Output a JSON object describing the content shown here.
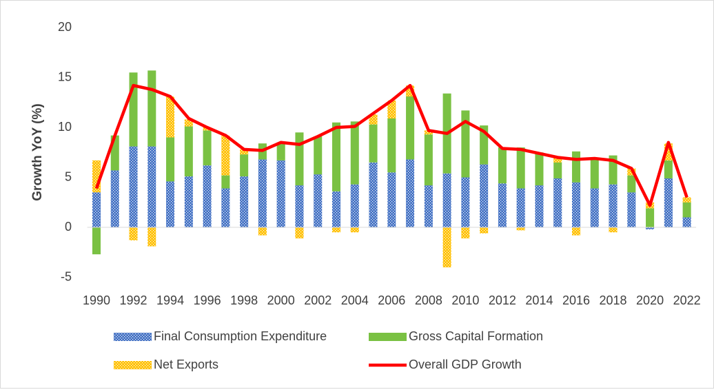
{
  "chart_data": {
    "type": "bar",
    "stacked": true,
    "y_label": "Growth YoY (%)",
    "categories": [
      "1990",
      null,
      "1992",
      null,
      "1994",
      null,
      "1996",
      null,
      "1998",
      null,
      "2000",
      null,
      "2002",
      null,
      "2004",
      null,
      "2006",
      null,
      "2008",
      null,
      "2010",
      null,
      "2012",
      null,
      "2014",
      null,
      "2016",
      null,
      "2018",
      null,
      "2020",
      null,
      "2022"
    ],
    "series": [
      {
        "name": "Final Consumption Expenditure",
        "type": "bar",
        "color": "#4472c4",
        "pattern": "dots",
        "values": [
          3.5,
          5.7,
          8.1,
          8.1,
          4.6,
          5.1,
          6.2,
          3.9,
          5.1,
          6.8,
          6.7,
          4.2,
          5.3,
          3.6,
          4.3,
          6.5,
          5.5,
          6.8,
          4.2,
          5.4,
          5.0,
          6.3,
          4.4,
          3.9,
          4.2,
          4.9,
          4.5,
          3.9,
          4.3,
          3.5,
          -0.2,
          4.9,
          1.0
        ]
      },
      {
        "name": "Gross Capital Formation",
        "type": "bar",
        "color": "#7ac143",
        "values": [
          -2.7,
          3.5,
          7.4,
          7.6,
          4.4,
          5.0,
          3.5,
          1.3,
          2.2,
          1.6,
          1.8,
          5.3,
          3.8,
          6.9,
          6.3,
          3.8,
          5.4,
          6.3,
          5.1,
          8.0,
          6.7,
          3.9,
          3.6,
          4.1,
          3.3,
          1.6,
          3.1,
          2.9,
          2.9,
          1.7,
          1.9,
          1.8,
          1.5
        ]
      },
      {
        "name": "Net Exports",
        "type": "bar",
        "color": "#ffc000",
        "pattern": "dots",
        "values": [
          3.2,
          0.0,
          -1.3,
          -1.9,
          4.1,
          0.7,
          0.3,
          4.0,
          0.5,
          -0.8,
          0.0,
          -1.1,
          0.0,
          -0.5,
          -0.5,
          1.0,
          1.8,
          1.1,
          0.4,
          -4.0,
          -1.1,
          -0.6,
          0.0,
          -0.3,
          0.0,
          0.6,
          -0.8,
          0.1,
          -0.5,
          0.7,
          0.6,
          1.7,
          0.5
        ]
      },
      {
        "name": "Overall GDP Growth",
        "type": "line",
        "color": "#ff0000",
        "values": [
          3.9,
          9.2,
          14.2,
          13.8,
          13.1,
          10.9,
          10.0,
          9.2,
          7.8,
          7.7,
          8.5,
          8.3,
          9.1,
          10.0,
          10.1,
          11.4,
          12.7,
          14.2,
          9.7,
          9.4,
          10.6,
          9.6,
          7.9,
          7.8,
          7.4,
          7.0,
          6.8,
          6.9,
          6.7,
          5.9,
          2.2,
          8.5,
          3.0
        ]
      }
    ],
    "ylim": [
      -5,
      20
    ],
    "yticks": [
      -5,
      0,
      5,
      10,
      15,
      20
    ],
    "grid": false,
    "legend": "bottom"
  }
}
